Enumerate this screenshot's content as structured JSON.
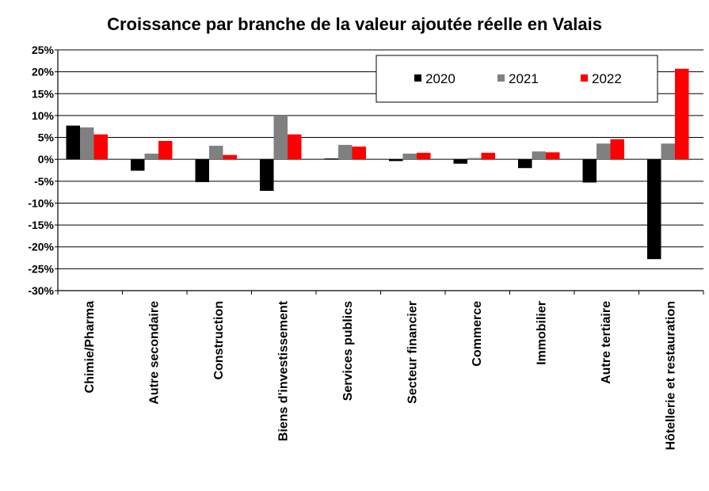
{
  "chart_data": {
    "type": "bar",
    "title": "Croissance par branche de la valeur ajoutée réelle en Valais",
    "xlabel": "",
    "ylabel": "",
    "ylim": [
      -30,
      25
    ],
    "yticks": [
      "25%",
      "20%",
      "15%",
      "10%",
      "5%",
      "0%",
      "-5%",
      "-10%",
      "-15%",
      "-20%",
      "-25%",
      "-30%"
    ],
    "grid": true,
    "legend_position": "top-right",
    "categories": [
      "Chimie/Pharma",
      "Autre secondaire",
      "Construction",
      "Biens d'investissement",
      "Services publics",
      "Secteur financier",
      "Commerce",
      "Immobilier",
      "Autre tertiaire",
      "Hôtellerie et restauration"
    ],
    "series": [
      {
        "name": "2020",
        "color": "#000000",
        "values": [
          7.7,
          -2.6,
          -5.2,
          -7.2,
          0.2,
          -0.4,
          -1.0,
          -2.0,
          -5.3,
          -22.8
        ]
      },
      {
        "name": "2021",
        "color": "#808080",
        "values": [
          7.3,
          1.3,
          3.1,
          10.0,
          3.3,
          1.3,
          0.3,
          1.8,
          3.6,
          3.6
        ]
      },
      {
        "name": "2022",
        "color": "#ff0000",
        "values": [
          5.7,
          4.2,
          1.0,
          5.7,
          2.9,
          1.5,
          1.5,
          1.6,
          4.6,
          20.7
        ]
      }
    ]
  }
}
